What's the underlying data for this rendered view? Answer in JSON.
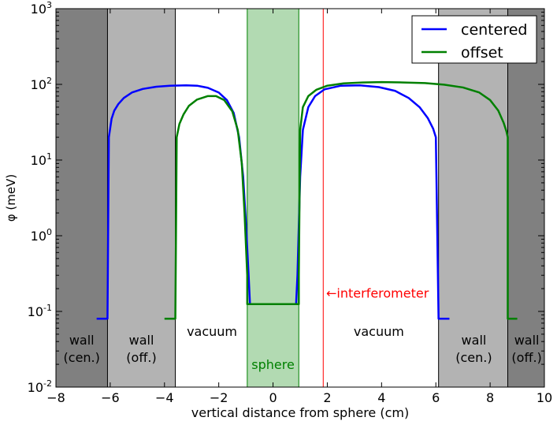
{
  "chart_data": {
    "type": "line",
    "xlabel": "vertical distance from sphere (cm)",
    "ylabel": "φ (meV)",
    "xlim": [
      -8,
      10
    ],
    "ylim": [
      0.01,
      1000
    ],
    "yscale": "log",
    "x_ticks": [
      -8,
      -6,
      -4,
      -2,
      0,
      2,
      4,
      6,
      8,
      10
    ],
    "x_tick_labels": [
      "−8",
      "−6",
      "−4",
      "−2",
      "0",
      "2",
      "4",
      "6",
      "8",
      "10"
    ],
    "y_ticks": [
      0.01,
      0.1,
      1,
      10,
      100,
      1000
    ],
    "y_tick_bases": [
      "10",
      "10",
      "10",
      "10",
      "10",
      "10"
    ],
    "y_tick_exps": [
      "-2",
      "-1",
      "0",
      "1",
      "2",
      "3"
    ],
    "grid": false,
    "legend_position": "top-right",
    "colors": {
      "centered": "#0000ff",
      "offset": "#008000",
      "wall_outer": "#808080",
      "wall_inner": "#b3b3b3",
      "sphere_fill": "#b2dab2",
      "sphere_edge": "#008000",
      "interferometer": "#ff0000"
    },
    "regions": [
      {
        "name": "wall-outer-left",
        "x0": -8,
        "x1": -6.1,
        "fill": "wall_outer"
      },
      {
        "name": "wall-inner-left",
        "x0": -6.1,
        "x1": -3.6,
        "fill": "wall_inner"
      },
      {
        "name": "sphere",
        "x0": -0.95,
        "x1": 0.95,
        "fill": "sphere_fill"
      },
      {
        "name": "wall-inner-right",
        "x0": 6.1,
        "x1": 8.65,
        "fill": "wall_inner"
      },
      {
        "name": "wall-outer-right",
        "x0": 8.65,
        "x1": 10,
        "fill": "wall_outer"
      }
    ],
    "boundary_lines": [
      -6.1,
      -3.6,
      6.1,
      8.65
    ],
    "interferometer_x": 1.85,
    "annotations": [
      {
        "id": "wall-cen-left-1",
        "text": "wall",
        "x": -7.05,
        "y": 0.042,
        "color": "#000000"
      },
      {
        "id": "wall-cen-left-2",
        "text": "(cen.)",
        "x": -7.05,
        "y": 0.025,
        "color": "#000000"
      },
      {
        "id": "wall-off-left-1",
        "text": "wall",
        "x": -4.85,
        "y": 0.042,
        "color": "#000000"
      },
      {
        "id": "wall-off-left-2",
        "text": "(off.)",
        "x": -4.85,
        "y": 0.025,
        "color": "#000000"
      },
      {
        "id": "vacuum-left",
        "text": "vacuum",
        "x": -2.25,
        "y": 0.055,
        "color": "#000000"
      },
      {
        "id": "sphere-label",
        "text": "sphere",
        "x": 0,
        "y": 0.02,
        "color": "#008000"
      },
      {
        "id": "interferometer-label",
        "text": "←interferometer",
        "x": 3.85,
        "y": 0.175,
        "color": "#ff0000"
      },
      {
        "id": "vacuum-right",
        "text": "vacuum",
        "x": 3.9,
        "y": 0.055,
        "color": "#000000"
      },
      {
        "id": "wall-cen-right-1",
        "text": "wall",
        "x": 7.4,
        "y": 0.042,
        "color": "#000000"
      },
      {
        "id": "wall-cen-right-2",
        "text": "(cen.)",
        "x": 7.4,
        "y": 0.025,
        "color": "#000000"
      },
      {
        "id": "wall-off-right-1",
        "text": "wall",
        "x": 9.35,
        "y": 0.042,
        "color": "#000000"
      },
      {
        "id": "wall-off-right-2",
        "text": "(off.)",
        "x": 9.35,
        "y": 0.025,
        "color": "#000000"
      }
    ],
    "series": [
      {
        "name": "centered",
        "color": "#0000ff",
        "x": [
          -6.5,
          -6.1,
          -6.1,
          -6.05,
          -5.95,
          -5.85,
          -5.7,
          -5.5,
          -5.2,
          -4.8,
          -4.3,
          -3.8,
          -3.2,
          -2.8,
          -2.4,
          -2.0,
          -1.7,
          -1.45,
          -1.25,
          -1.1,
          -1.0,
          -0.9,
          -0.85,
          0.85,
          0.9,
          1.0,
          1.1,
          1.3,
          1.55,
          1.9,
          2.5,
          3.2,
          3.9,
          4.5,
          5.0,
          5.4,
          5.7,
          5.9,
          6.0,
          6.1,
          6.1,
          6.5
        ],
        "y": [
          0.08,
          0.08,
          0.08,
          20,
          35,
          45,
          55,
          66,
          78,
          87,
          93,
          96,
          97,
          96,
          90,
          78,
          62,
          42,
          20,
          6,
          1.5,
          0.3,
          0.125,
          0.125,
          0.3,
          6,
          25,
          50,
          70,
          86,
          96,
          97,
          92,
          82,
          66,
          50,
          36,
          26,
          20,
          0.08,
          0.08,
          0.08
        ]
      },
      {
        "name": "offset",
        "color": "#008000",
        "x": [
          -4.0,
          -3.6,
          -3.6,
          -3.55,
          -3.45,
          -3.3,
          -3.1,
          -2.8,
          -2.4,
          -2.1,
          -1.8,
          -1.5,
          -1.3,
          -1.15,
          -1.05,
          -0.95,
          -0.95,
          0.95,
          0.95,
          1.0,
          1.1,
          1.3,
          1.6,
          2.0,
          2.6,
          3.3,
          4.0,
          4.8,
          5.6,
          6.3,
          7.0,
          7.6,
          8.0,
          8.3,
          8.5,
          8.6,
          8.65,
          8.65,
          9.0
        ],
        "y": [
          0.08,
          0.08,
          0.08,
          20,
          30,
          40,
          52,
          63,
          70,
          70,
          62,
          44,
          25,
          9,
          2,
          0.3,
          0.125,
          0.125,
          0.3,
          25,
          50,
          70,
          85,
          96,
          103,
          106,
          107,
          106,
          104,
          99,
          91,
          78,
          62,
          45,
          31,
          24,
          20,
          0.08,
          0.08
        ]
      }
    ]
  }
}
